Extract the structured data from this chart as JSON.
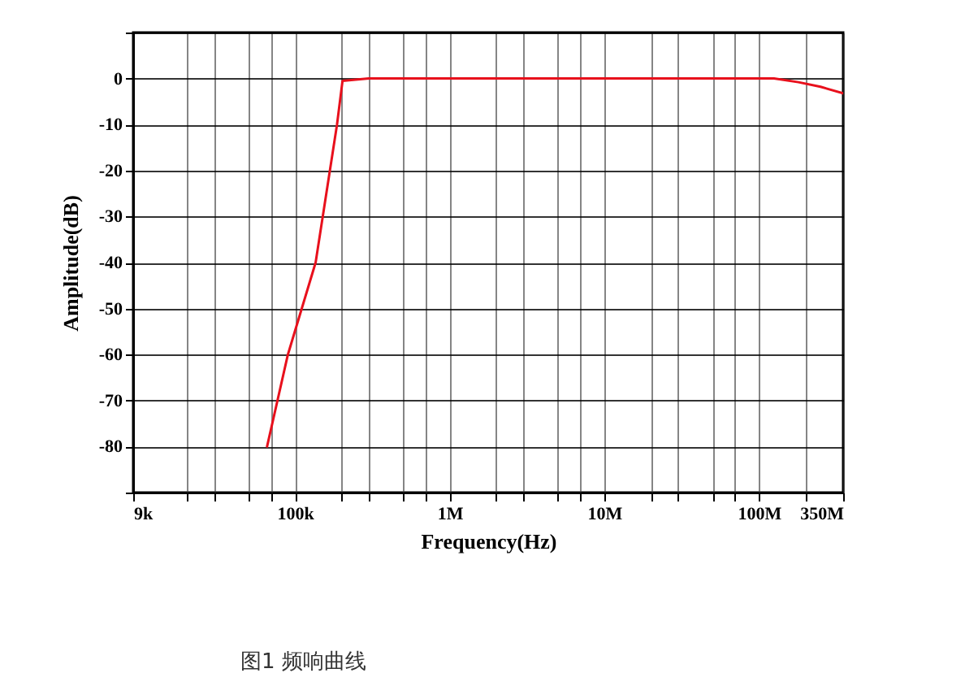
{
  "chart_data": {
    "type": "line",
    "xlabel": "Frequency(Hz)",
    "ylabel": "Amplitude(dB)",
    "annotations": [
      "图1 频响曲线"
    ],
    "log": "x",
    "grid": true,
    "marker": "none",
    "line_style": "solid",
    "xlim": [
      9000,
      350000000
    ],
    "ylim": [
      -90,
      10
    ],
    "xticks": [
      {
        "value": 9000,
        "label": "9k"
      },
      {
        "value": 20000,
        "label": null
      },
      {
        "value": 30000,
        "label": null
      },
      {
        "value": 50000,
        "label": null
      },
      {
        "value": 70000,
        "label": null
      },
      {
        "value": 100000,
        "label": "100k"
      },
      {
        "value": 200000,
        "label": null
      },
      {
        "value": 300000,
        "label": null
      },
      {
        "value": 500000,
        "label": null
      },
      {
        "value": 700000,
        "label": null
      },
      {
        "value": 1000000,
        "label": "1M"
      },
      {
        "value": 2000000,
        "label": null
      },
      {
        "value": 3000000,
        "label": null
      },
      {
        "value": 5000000,
        "label": null
      },
      {
        "value": 7000000,
        "label": null
      },
      {
        "value": 10000000,
        "label": "10M"
      },
      {
        "value": 20000000,
        "label": null
      },
      {
        "value": 30000000,
        "label": null
      },
      {
        "value": 50000000,
        "label": null
      },
      {
        "value": 70000000,
        "label": null
      },
      {
        "value": 100000000,
        "label": "100M"
      },
      {
        "value": 200000000,
        "label": null
      },
      {
        "value": 350000000,
        "label": "350M"
      }
    ],
    "yticks": [
      {
        "value": 10,
        "label": null
      },
      0,
      -10,
      -20,
      -30,
      -40,
      -50,
      -60,
      -70,
      -80,
      {
        "value": -90,
        "label": null
      }
    ],
    "series": [
      {
        "color": "#e8101c",
        "x": [
          66000,
          90000,
          136000,
          187000,
          203000,
          300000,
          1000000,
          10000000,
          100000000,
          125000000,
          180000000,
          250000000,
          350000000
        ],
        "values": [
          -80,
          -60,
          -40,
          -10,
          -0.5,
          0,
          0,
          0,
          0,
          0,
          -0.8,
          -1.8,
          -3.2
        ]
      }
    ]
  }
}
